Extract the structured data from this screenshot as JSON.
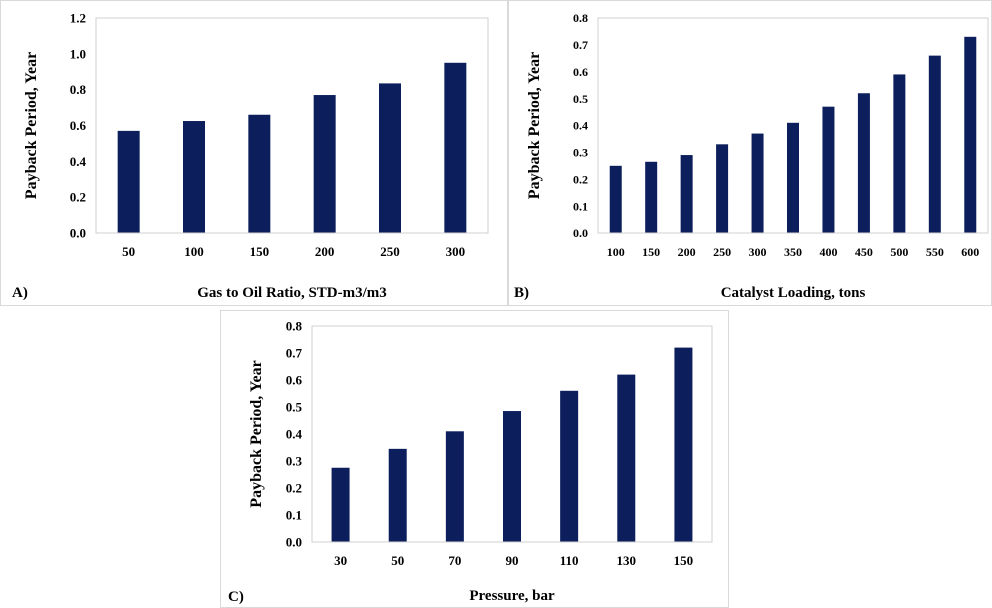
{
  "colors": {
    "bar": "#0c1f5c",
    "frame": "#d0d0d0",
    "panel_border": "#d9d9d9"
  },
  "chart_data": [
    {
      "panel_label": "A)",
      "type": "bar",
      "categories": [
        "50",
        "100",
        "150",
        "200",
        "250",
        "300"
      ],
      "values": [
        0.57,
        0.625,
        0.66,
        0.77,
        0.835,
        0.95
      ],
      "xlabel": "Gas to Oil Ratio, STD-m3/m3",
      "ylabel": "Payback Period, Year",
      "ylim": [
        0,
        1.2
      ],
      "yticks": [
        "0.0",
        "0.2",
        "0.4",
        "0.6",
        "0.8",
        "1.0",
        "1.2"
      ],
      "grid": false
    },
    {
      "panel_label": "B)",
      "type": "bar",
      "categories": [
        "100",
        "150",
        "200",
        "250",
        "300",
        "350",
        "400",
        "450",
        "500",
        "550",
        "600"
      ],
      "values": [
        0.25,
        0.265,
        0.29,
        0.33,
        0.37,
        0.41,
        0.47,
        0.52,
        0.59,
        0.66,
        0.73
      ],
      "xlabel": "Catalyst Loading, tons",
      "ylabel": "Payback Period, Year",
      "ylim": [
        0,
        0.8
      ],
      "yticks": [
        "0.0",
        "0.1",
        "0.2",
        "0.3",
        "0.4",
        "0.5",
        "0.6",
        "0.7",
        "0.8"
      ],
      "grid": false
    },
    {
      "panel_label": "C)",
      "type": "bar",
      "categories": [
        "30",
        "50",
        "70",
        "90",
        "110",
        "130",
        "150"
      ],
      "values": [
        0.275,
        0.345,
        0.41,
        0.485,
        0.56,
        0.62,
        0.72
      ],
      "xlabel": "Pressure, bar",
      "ylabel": "Payback Period, Year",
      "ylim": [
        0,
        0.8
      ],
      "yticks": [
        "0.0",
        "0.1",
        "0.2",
        "0.3",
        "0.4",
        "0.5",
        "0.6",
        "0.7",
        "0.8"
      ],
      "grid": false
    }
  ]
}
